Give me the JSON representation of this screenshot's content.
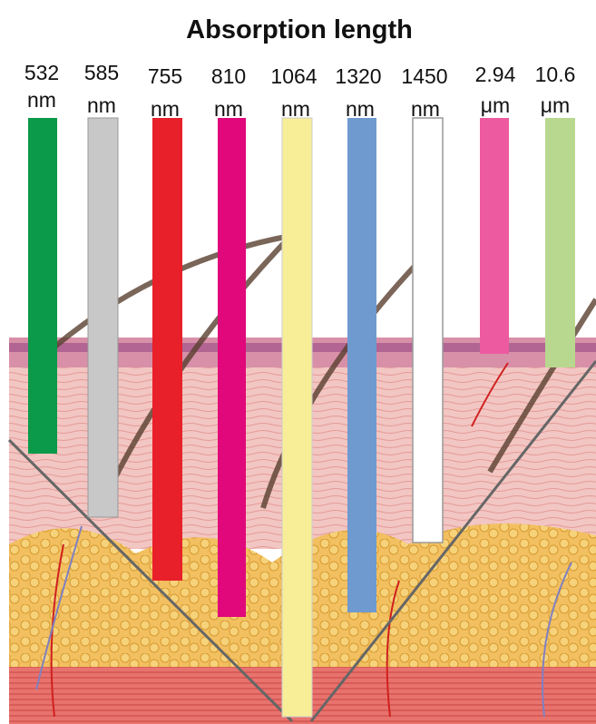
{
  "title": "Absorption length",
  "labels": [
    {
      "value": "532",
      "unit": "nm"
    },
    {
      "value": "585",
      "unit": "nm"
    },
    {
      "value": "755",
      "unit": "nm"
    },
    {
      "value": "810",
      "unit": "nm"
    },
    {
      "value": "1064",
      "unit": "nm"
    },
    {
      "value": "1320",
      "unit": "nm"
    },
    {
      "value": "1450",
      "unit": "nm"
    },
    {
      "value": "2.94",
      "unit": "μm"
    },
    {
      "value": "10.6",
      "unit": "μm"
    }
  ]
}
